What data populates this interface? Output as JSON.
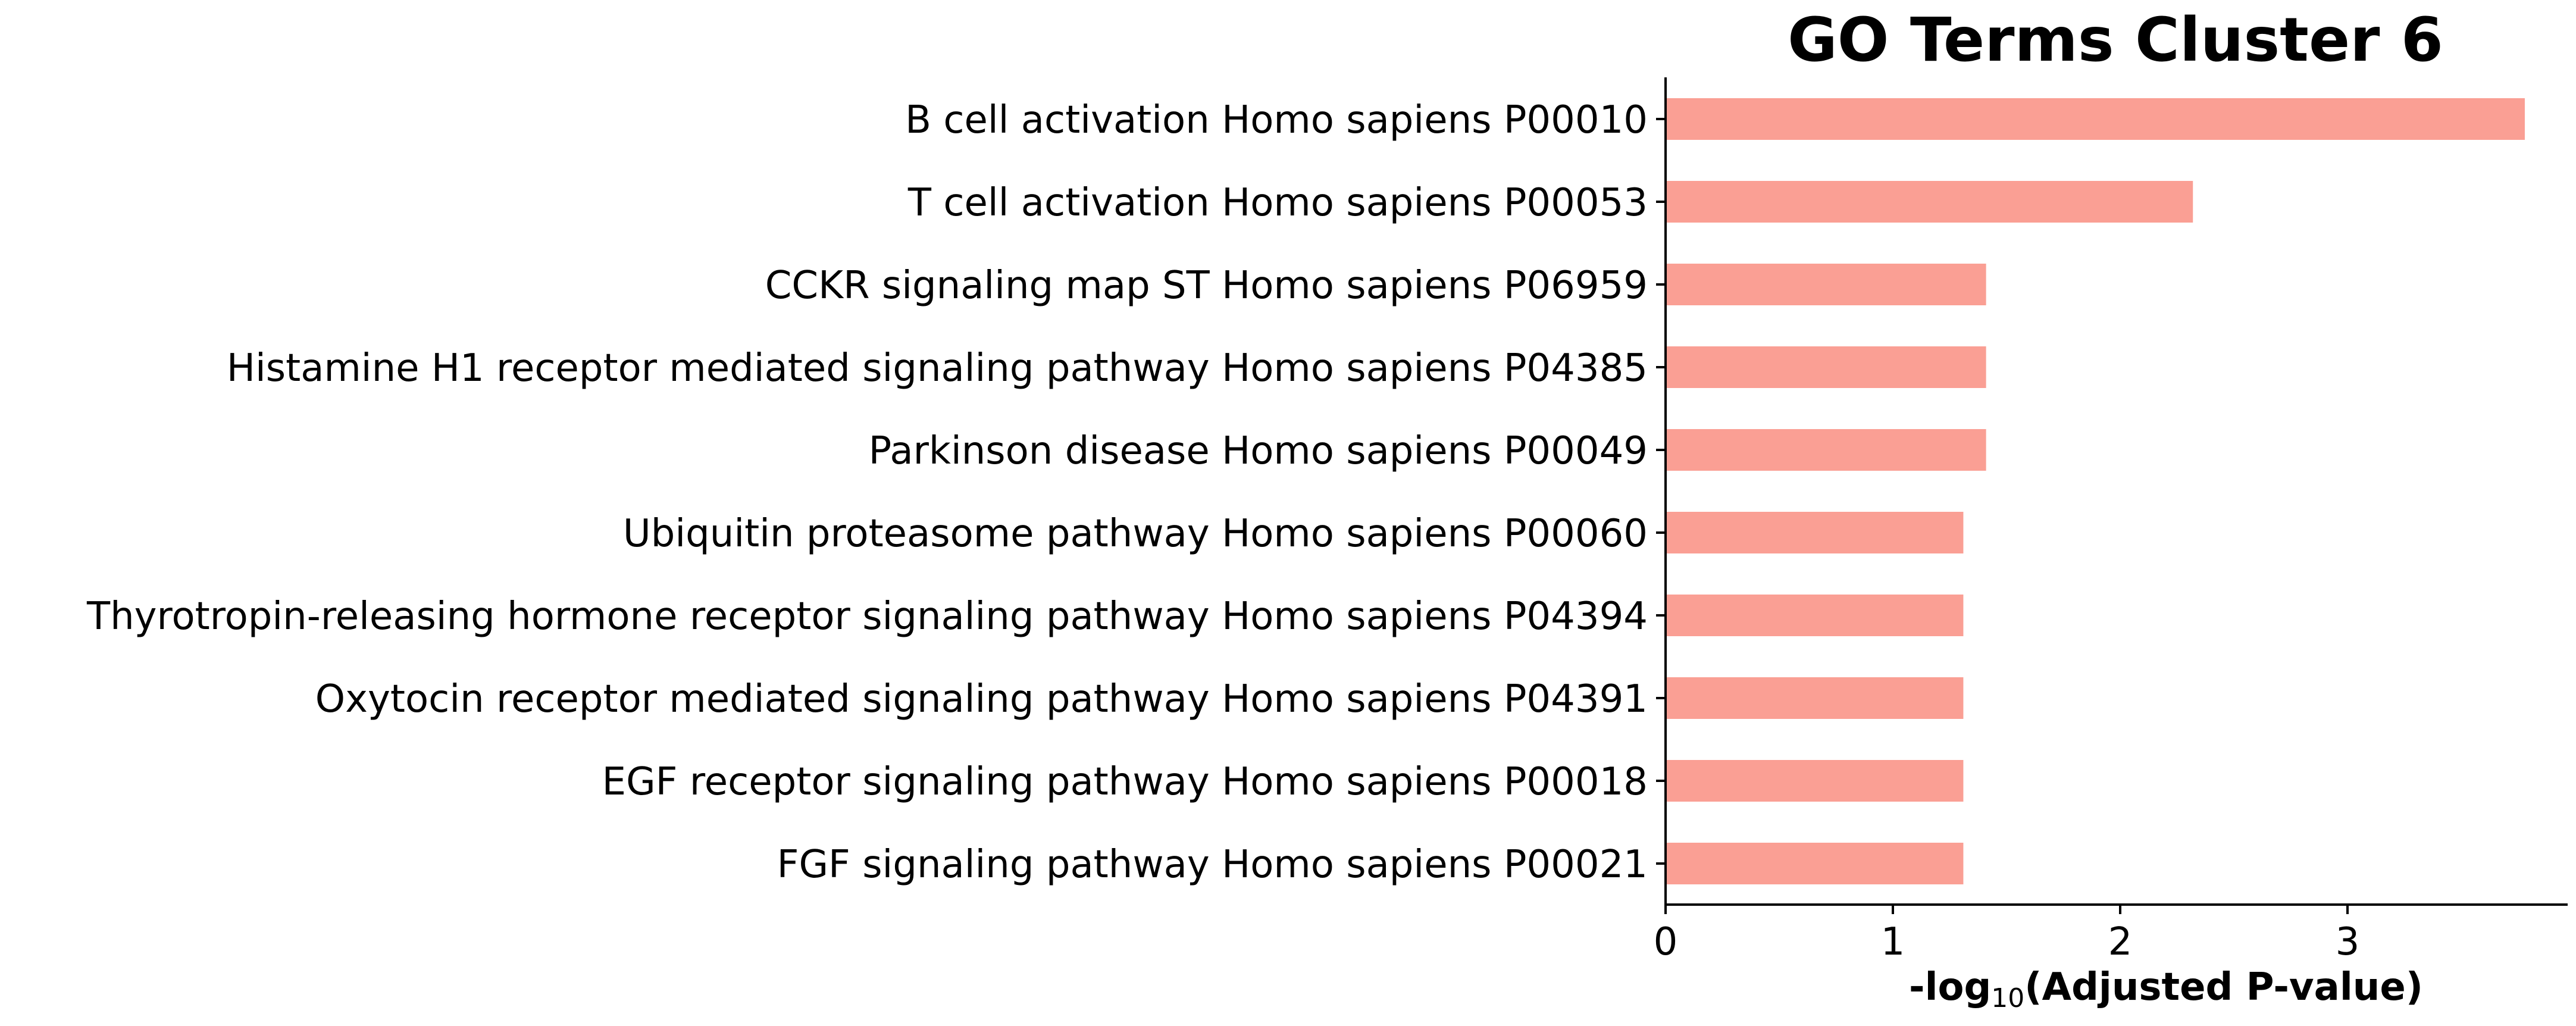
{
  "chart_data": {
    "type": "bar",
    "orientation": "horizontal",
    "title": "GO Terms Cluster 6",
    "xlabel": {
      "prefix": "-log",
      "subscript": "10",
      "suffix": "(Adjusted P-value)"
    },
    "ylabel": "",
    "xlim": [
      0,
      3.97
    ],
    "xticks": [
      "0",
      "1",
      "2",
      "3"
    ],
    "bar_color": "#fa9f94",
    "grid": false,
    "categories": [
      "B cell activation Homo sapiens P00010",
      "T cell activation Homo sapiens P00053",
      "CCKR signaling map ST Homo sapiens P06959",
      "Histamine H1 receptor mediated signaling pathway Homo sapiens P04385",
      "Parkinson disease Homo sapiens P00049",
      "Ubiquitin proteasome pathway Homo sapiens P00060",
      "Thyrotropin-releasing hormone receptor signaling pathway Homo sapiens P04394",
      "Oxytocin receptor mediated signaling pathway Homo sapiens P04391",
      "EGF receptor signaling pathway Homo sapiens P00018",
      "FGF signaling pathway Homo sapiens P00021"
    ],
    "values": [
      3.78,
      2.32,
      1.41,
      1.41,
      1.41,
      1.31,
      1.31,
      1.31,
      1.31,
      1.31
    ]
  }
}
